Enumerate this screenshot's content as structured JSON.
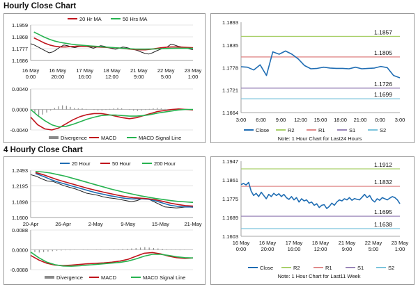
{
  "titles": {
    "hourly": "Hourly Close Chart",
    "four_hourly": "4 Hourly Close Chart"
  },
  "colors": {
    "red": "#c0141c",
    "green": "#27b350",
    "blue": "#1f6db3",
    "black": "#222222",
    "r2": "#a9d06a",
    "r1": "#e08a8a",
    "s1": "#9a86b8",
    "s2": "#7cc4dc",
    "grey": "#8a8a8a"
  },
  "chart_data": [
    {
      "id": "hourly_price",
      "type": "line",
      "ylim": [
        1.1686,
        1.1959
      ],
      "yticks": [
        "1.1959",
        "1.1868",
        "1.1777",
        "1.1686"
      ],
      "ytick_values": [
        1.1959,
        1.1868,
        1.1777,
        1.1686
      ],
      "x_labels": [
        "16 May\n0:00",
        "16 May\n20:00",
        "17 May\n16:00",
        "18 May\n12:00",
        "21 May\n9:00",
        "22 May\n5:00",
        "23 May\n1:00"
      ],
      "legend": [
        "20 Hr MA",
        "50 Hrs MA"
      ],
      "series": [
        {
          "name": "Price",
          "color": "#222222",
          "values": [
            1.1815,
            1.1805,
            1.179,
            1.1775,
            1.176,
            1.1745,
            1.1752,
            1.177,
            1.179,
            1.1805,
            1.18,
            1.179,
            1.1785,
            1.1792,
            1.1798,
            1.1795,
            1.1788,
            1.178,
            1.179,
            1.18,
            1.1795,
            1.1785,
            1.1778,
            1.1772,
            1.178,
            1.179,
            1.1785,
            1.1778,
            1.177,
            1.1762,
            1.175,
            1.174,
            1.1735,
            1.1745,
            1.1758,
            1.177,
            1.178,
            1.179,
            1.181,
            1.1805,
            1.1795,
            1.179,
            1.1785,
            1.1775,
            1.1768
          ]
        },
        {
          "name": "20 Hr MA",
          "color": "#c0141c",
          "values": [
            1.186,
            1.184,
            1.182,
            1.1805,
            1.1795,
            1.179,
            1.179,
            1.1793,
            1.1795,
            1.1795,
            1.1794,
            1.1792,
            1.179,
            1.1788,
            1.1786,
            1.1784,
            1.1782,
            1.1778,
            1.1774,
            1.177,
            1.1768,
            1.1768,
            1.1772,
            1.1778,
            1.1784,
            1.1788,
            1.179,
            1.179,
            1.1788,
            1.1786,
            1.1784
          ]
        },
        {
          "name": "50 Hrs MA",
          "color": "#27b350",
          "values": [
            1.1905,
            1.1885,
            1.1865,
            1.1848,
            1.1835,
            1.1825,
            1.1818,
            1.1812,
            1.1807,
            1.1803,
            1.18,
            1.1797,
            1.1794,
            1.1791,
            1.1788,
            1.1785,
            1.1782,
            1.1779,
            1.1776,
            1.1774,
            1.1773,
            1.1773,
            1.1774,
            1.1775,
            1.1777,
            1.1778,
            1.1779,
            1.178,
            1.178,
            1.178,
            1.1779
          ]
        }
      ]
    },
    {
      "id": "hourly_macd",
      "type": "line",
      "ylim": [
        -0.004,
        0.004
      ],
      "yticks": [
        "0.0040",
        "0.0000",
        "-0.0040"
      ],
      "ytick_values": [
        0.004,
        0.0,
        -0.004
      ],
      "legend": [
        "Divergence",
        "MACD",
        "MACD Signal Line"
      ],
      "series": [
        {
          "name": "Divergence",
          "type": "bar",
          "color": "#8a8a8a",
          "values": [
            -0.0008,
            -0.0012,
            -0.001,
            -0.0006,
            -0.0002,
            0.0003,
            0.0006,
            0.0008,
            0.0007,
            0.0005,
            0.0003,
            0.0002,
            0.0002,
            0.0001,
            0.0,
            -0.0001,
            -0.0002,
            -0.0002,
            -0.0001,
            0.0001,
            0.0002,
            0.0003,
            0.0002,
            0.0,
            -0.0001,
            -0.0002,
            -0.0003,
            -0.0002,
            -0.0001,
            0.0001,
            0.0002,
            0.0003,
            0.0002,
            0.0001,
            0.0,
            -0.0001,
            -0.0002,
            -0.0001,
            0.0,
            0.0
          ]
        },
        {
          "name": "MACD",
          "color": "#c0141c",
          "values": [
            -0.0015,
            -0.003,
            -0.0038,
            -0.004,
            -0.0036,
            -0.0028,
            -0.002,
            -0.0014,
            -0.001,
            -0.0008,
            -0.0008,
            -0.001,
            -0.0013,
            -0.0016,
            -0.0018,
            -0.0016,
            -0.0012,
            -0.0008,
            -0.0004,
            -0.0002,
            0.0,
            0.0001,
            0.0,
            -0.0001
          ]
        },
        {
          "name": "MACD Signal Line",
          "color": "#27b350",
          "values": [
            0.0,
            -0.0012,
            -0.0022,
            -0.003,
            -0.0034,
            -0.0033,
            -0.0029,
            -0.0024,
            -0.0019,
            -0.0015,
            -0.0012,
            -0.0011,
            -0.0011,
            -0.0012,
            -0.0013,
            -0.0013,
            -0.0012,
            -0.001,
            -0.0007,
            -0.0005,
            -0.0003,
            -0.0001,
            0.0,
            0.0
          ]
        }
      ]
    },
    {
      "id": "hourly_pivot",
      "type": "line",
      "ylim": [
        1.1664,
        1.1893
      ],
      "yticks": [
        "1.1893",
        "1.1835",
        "1.1778",
        "1.1721",
        "1.1664"
      ],
      "ytick_values": [
        1.1893,
        1.1835,
        1.1778,
        1.1721,
        1.1664
      ],
      "x_labels": [
        "3:00",
        "6:00",
        "9:00",
        "12:00",
        "15:00",
        "18:00",
        "21:00",
        "0:00",
        "3:00"
      ],
      "levels": [
        {
          "name": "R2",
          "value": 1.1857,
          "label": "1.1857"
        },
        {
          "name": "R1",
          "value": 1.1805,
          "label": "1.1805"
        },
        {
          "name": "S1",
          "value": 1.1726,
          "label": "1.1726"
        },
        {
          "name": "S2",
          "value": 1.1699,
          "label": "1.1699"
        }
      ],
      "legend": [
        "Close",
        "R2",
        "R1",
        "S1",
        "S2"
      ],
      "note": "Note: 1 Hour Chart for Last24 Hours",
      "series": [
        {
          "name": "Close",
          "color": "#1f6db3",
          "values": [
            1.178,
            1.1779,
            1.1772,
            1.1785,
            1.1758,
            1.1818,
            1.1812,
            1.182,
            1.1812,
            1.18,
            1.1783,
            1.1775,
            1.1776,
            1.1779,
            1.1777,
            1.1776,
            1.1776,
            1.1775,
            1.1779,
            1.1775,
            1.1776,
            1.1777,
            1.1781,
            1.1778,
            1.1758,
            1.1752
          ]
        }
      ]
    },
    {
      "id": "four_hourly_price",
      "type": "line",
      "ylim": [
        1.16,
        1.2493
      ],
      "yticks": [
        "1.2493",
        "1.2195",
        "1.1898",
        "1.1600"
      ],
      "ytick_values": [
        1.2493,
        1.2195,
        1.1898,
        1.16
      ],
      "x_labels": [
        "20-Apr",
        "26-Apr",
        "2-May",
        "9-May",
        "15-May",
        "21-May"
      ],
      "legend": [
        "20 Hour",
        "50 Hour",
        "200 Hour"
      ],
      "series": [
        {
          "name": "Price",
          "color": "#222222",
          "values": [
            1.241,
            1.238,
            1.233,
            1.229,
            1.228,
            1.224,
            1.22,
            1.217,
            1.214,
            1.21,
            1.206,
            1.204,
            1.202,
            1.199,
            1.197,
            1.196,
            1.194,
            1.192,
            1.19,
            1.192,
            1.196,
            1.195,
            1.19,
            1.185,
            1.18,
            1.179,
            1.178,
            1.179,
            1.18,
            1.1795
          ]
        },
        {
          "name": "20 Hour",
          "color": "#1f6db3",
          "values": [
            1.243,
            1.238,
            1.232,
            1.227,
            1.223,
            1.219,
            1.215,
            1.211,
            1.207,
            1.204,
            1.201,
            1.1985,
            1.196,
            1.195,
            1.1955,
            1.1945,
            1.1915,
            1.187,
            1.183,
            1.181,
            1.18,
            1.18
          ]
        },
        {
          "name": "50 Hour",
          "color": "#c0141c",
          "values": [
            1.245,
            1.241,
            1.236,
            1.231,
            1.227,
            1.223,
            1.219,
            1.215,
            1.2115,
            1.208,
            1.205,
            1.202,
            1.1995,
            1.1975,
            1.1965,
            1.1955,
            1.1935,
            1.1905,
            1.187,
            1.1845,
            1.1825,
            1.1815
          ]
        },
        {
          "name": "200 Hour",
          "color": "#27b350",
          "values": [
            1.247,
            1.246,
            1.244,
            1.241,
            1.238,
            1.234,
            1.23,
            1.226,
            1.222,
            1.218,
            1.214,
            1.2105,
            1.207,
            1.204,
            1.201,
            1.1985,
            1.196,
            1.194,
            1.192,
            1.1905,
            1.1895,
            1.1885
          ]
        }
      ]
    },
    {
      "id": "four_hourly_macd",
      "type": "line",
      "ylim": [
        -0.0088,
        0.0088
      ],
      "yticks": [
        "0.0088",
        "0.0000",
        "-0.0088"
      ],
      "ytick_values": [
        0.0088,
        0.0,
        -0.0088
      ],
      "legend": [
        "Divergence",
        "MACD",
        "MACD Signal Line"
      ],
      "series": [
        {
          "name": "Divergence",
          "type": "bar",
          "color": "#8a8a8a",
          "values": [
            -0.001,
            -0.0012,
            -0.001,
            -0.0008,
            -0.0006,
            -0.0004,
            -0.0003,
            -0.0002,
            -0.0002,
            -0.0001,
            0.0,
            0.0001,
            0.0001,
            0.0,
            -0.0001,
            -0.0001,
            0.0,
            0.0001,
            0.0002,
            0.0002,
            0.0003,
            0.0004,
            0.0006,
            0.0008,
            0.001,
            0.0012,
            0.001,
            0.0008,
            0.0006,
            0.0004,
            0.0002,
            0.0001,
            -0.0001,
            -0.0002,
            -0.0001,
            0.0
          ]
        },
        {
          "name": "MACD",
          "color": "#c0141c",
          "values": [
            -0.0025,
            -0.0045,
            -0.006,
            -0.0068,
            -0.007,
            -0.0068,
            -0.0065,
            -0.0062,
            -0.006,
            -0.0058,
            -0.0055,
            -0.005,
            -0.0042,
            -0.0028,
            -0.0015,
            -0.0012,
            -0.0018,
            -0.0028,
            -0.0035,
            -0.0038,
            -0.0036
          ]
        },
        {
          "name": "MACD Signal Line",
          "color": "#27b350",
          "values": [
            -0.001,
            -0.0035,
            -0.0055,
            -0.0066,
            -0.0072,
            -0.0073,
            -0.0071,
            -0.0068,
            -0.0065,
            -0.0062,
            -0.0059,
            -0.0056,
            -0.005,
            -0.004,
            -0.0028,
            -0.002,
            -0.002,
            -0.0025,
            -0.0031,
            -0.0035,
            -0.0036
          ]
        }
      ]
    },
    {
      "id": "four_hourly_pivot",
      "type": "line",
      "ylim": [
        1.1603,
        1.1947
      ],
      "yticks": [
        "1.1947",
        "1.1861",
        "1.1775",
        "1.1689",
        "1.1603"
      ],
      "ytick_values": [
        1.1947,
        1.1861,
        1.1775,
        1.1689,
        1.1603
      ],
      "x_labels": [
        "16 May\n0:00",
        "16 May\n20:00",
        "17 May\n16:00",
        "18 May\n12:00",
        "21 May\n9:00",
        "22 May\n5:00",
        "23 May\n1:00"
      ],
      "levels": [
        {
          "name": "R2",
          "value": 1.1912,
          "label": "1.1912"
        },
        {
          "name": "R1",
          "value": 1.1832,
          "label": "1.1832"
        },
        {
          "name": "S1",
          "value": 1.1695,
          "label": "1.1695"
        },
        {
          "name": "S2",
          "value": 1.1638,
          "label": "1.1638"
        }
      ],
      "legend": [
        "Close",
        "R2",
        "R1",
        "S1",
        "S2"
      ],
      "note": "Note: 1 Hour Chart for Last11 Week",
      "series": [
        {
          "name": "Close",
          "color": "#1f6db3",
          "values": [
            1.184,
            1.1845,
            1.1838,
            1.185,
            1.181,
            1.179,
            1.18,
            1.1785,
            1.1805,
            1.179,
            1.1775,
            1.1795,
            1.1785,
            1.18,
            1.179,
            1.1798,
            1.1785,
            1.1795,
            1.178,
            1.1772,
            1.1785,
            1.177,
            1.178,
            1.176,
            1.1775,
            1.1765,
            1.177,
            1.1755,
            1.176,
            1.1745,
            1.1752,
            1.1735,
            1.1745,
            1.1748,
            1.173,
            1.174,
            1.1755,
            1.1745,
            1.176,
            1.177,
            1.1765,
            1.1775,
            1.177,
            1.178,
            1.1768,
            1.1776,
            1.1772,
            1.177,
            1.1782,
            1.1795,
            1.178,
            1.179,
            1.177,
            1.176,
            1.1775,
            1.1768,
            1.178,
            1.1775,
            1.177,
            1.1778,
            1.1785,
            1.178,
            1.177,
            1.1752
          ]
        }
      ]
    }
  ]
}
